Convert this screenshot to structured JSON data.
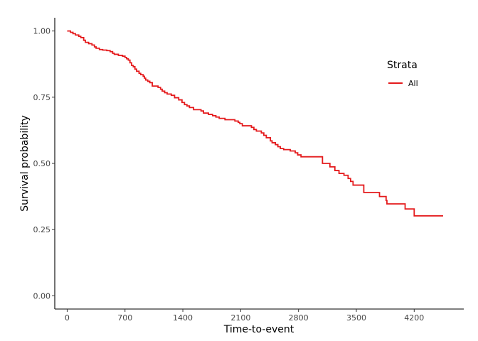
{
  "chart_data": {
    "type": "line",
    "title": "",
    "xlabel": "Time-to-event",
    "ylabel": "Survival probability",
    "xlim": [
      -150,
      4800
    ],
    "ylim": [
      -0.05,
      1.05
    ],
    "x_ticks": [
      0,
      700,
      1400,
      2100,
      2800,
      3500,
      4200
    ],
    "x_tick_labels": [
      "0",
      "700",
      "1400",
      "2100",
      "2800",
      "3500",
      "4200"
    ],
    "y_ticks": [
      0,
      0.25,
      0.5,
      0.75,
      1.0
    ],
    "y_tick_labels": [
      "0.00",
      "0.25",
      "0.50",
      "0.75",
      "1.00"
    ],
    "grid": false,
    "legend": {
      "title": "Strata",
      "placement": "top-right",
      "entries": [
        "All"
      ]
    },
    "series": [
      {
        "name": "All",
        "color": "#e41a1c",
        "step": true,
        "points": [
          [
            0,
            1.0
          ],
          [
            40,
            0.995
          ],
          [
            70,
            0.99
          ],
          [
            100,
            0.985
          ],
          [
            140,
            0.98
          ],
          [
            165,
            0.975
          ],
          [
            200,
            0.965
          ],
          [
            220,
            0.957
          ],
          [
            260,
            0.952
          ],
          [
            300,
            0.947
          ],
          [
            330,
            0.94
          ],
          [
            350,
            0.935
          ],
          [
            390,
            0.93
          ],
          [
            430,
            0.928
          ],
          [
            480,
            0.926
          ],
          [
            520,
            0.922
          ],
          [
            550,
            0.916
          ],
          [
            570,
            0.912
          ],
          [
            620,
            0.908
          ],
          [
            670,
            0.905
          ],
          [
            700,
            0.9
          ],
          [
            720,
            0.895
          ],
          [
            740,
            0.89
          ],
          [
            760,
            0.88
          ],
          [
            780,
            0.87
          ],
          [
            800,
            0.865
          ],
          [
            820,
            0.856
          ],
          [
            840,
            0.848
          ],
          [
            870,
            0.84
          ],
          [
            890,
            0.835
          ],
          [
            920,
            0.829
          ],
          [
            935,
            0.822
          ],
          [
            950,
            0.815
          ],
          [
            975,
            0.81
          ],
          [
            1000,
            0.805
          ],
          [
            1030,
            0.792
          ],
          [
            1100,
            0.787
          ],
          [
            1130,
            0.78
          ],
          [
            1150,
            0.773
          ],
          [
            1180,
            0.767
          ],
          [
            1210,
            0.762
          ],
          [
            1260,
            0.757
          ],
          [
            1300,
            0.748
          ],
          [
            1350,
            0.74
          ],
          [
            1390,
            0.73
          ],
          [
            1420,
            0.722
          ],
          [
            1450,
            0.717
          ],
          [
            1480,
            0.711
          ],
          [
            1530,
            0.703
          ],
          [
            1620,
            0.698
          ],
          [
            1650,
            0.69
          ],
          [
            1710,
            0.685
          ],
          [
            1760,
            0.68
          ],
          [
            1800,
            0.675
          ],
          [
            1840,
            0.67
          ],
          [
            1910,
            0.665
          ],
          [
            2030,
            0.66
          ],
          [
            2070,
            0.655
          ],
          [
            2090,
            0.65
          ],
          [
            2120,
            0.642
          ],
          [
            2230,
            0.636
          ],
          [
            2260,
            0.628
          ],
          [
            2290,
            0.622
          ],
          [
            2350,
            0.615
          ],
          [
            2380,
            0.606
          ],
          [
            2410,
            0.597
          ],
          [
            2460,
            0.585
          ],
          [
            2480,
            0.578
          ],
          [
            2520,
            0.571
          ],
          [
            2550,
            0.563
          ],
          [
            2580,
            0.556
          ],
          [
            2620,
            0.552
          ],
          [
            2700,
            0.547
          ],
          [
            2760,
            0.54
          ],
          [
            2790,
            0.532
          ],
          [
            2830,
            0.525
          ],
          [
            3090,
            0.5
          ],
          [
            3180,
            0.487
          ],
          [
            3240,
            0.473
          ],
          [
            3290,
            0.462
          ],
          [
            3350,
            0.455
          ],
          [
            3400,
            0.443
          ],
          [
            3430,
            0.432
          ],
          [
            3460,
            0.418
          ],
          [
            3590,
            0.39
          ],
          [
            3780,
            0.375
          ],
          [
            3860,
            0.36
          ],
          [
            3870,
            0.347
          ],
          [
            4090,
            0.328
          ],
          [
            4200,
            0.302
          ],
          [
            4550,
            0.302
          ]
        ]
      }
    ]
  }
}
